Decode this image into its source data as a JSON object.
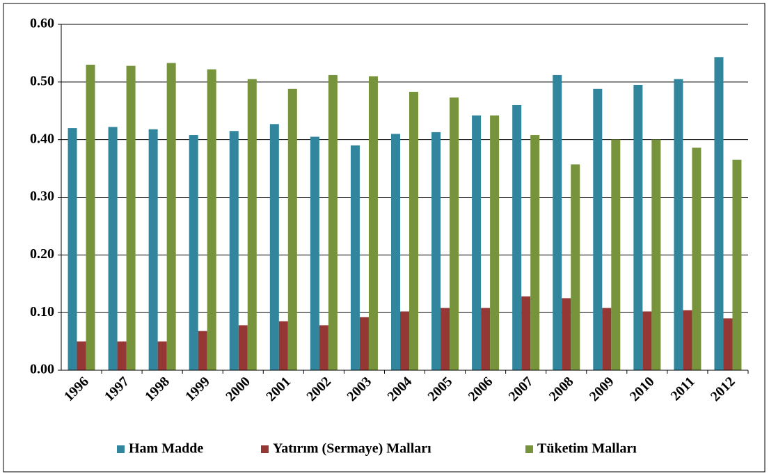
{
  "chart_data": {
    "type": "bar",
    "categories": [
      "1996",
      "1997",
      "1998",
      "1999",
      "2000",
      "2001",
      "2002",
      "2003",
      "2004",
      "2005",
      "2006",
      "2007",
      "2008",
      "2009",
      "2010",
      "2011",
      "2012"
    ],
    "series": [
      {
        "name": "Ham Madde",
        "color": "#31859c",
        "values": [
          0.42,
          0.422,
          0.418,
          0.408,
          0.415,
          0.427,
          0.405,
          0.39,
          0.41,
          0.413,
          0.442,
          0.46,
          0.512,
          0.488,
          0.495,
          0.505,
          0.543
        ]
      },
      {
        "name": "Yatırım (Sermaye) Malları",
        "color": "#953735",
        "values": [
          0.05,
          0.05,
          0.05,
          0.068,
          0.078,
          0.085,
          0.078,
          0.092,
          0.102,
          0.108,
          0.108,
          0.128,
          0.125,
          0.108,
          0.102,
          0.104,
          0.09
        ]
      },
      {
        "name": "Tüketim Malları",
        "color": "#77933c",
        "values": [
          0.53,
          0.528,
          0.533,
          0.522,
          0.505,
          0.488,
          0.512,
          0.51,
          0.483,
          0.473,
          0.442,
          0.408,
          0.357,
          0.4,
          0.4,
          0.386,
          0.365
        ]
      }
    ],
    "ylim": [
      0,
      0.6
    ],
    "yticks": [
      {
        "value": 0,
        "label": "0.00"
      },
      {
        "value": 0.1,
        "label": "0.10"
      },
      {
        "value": 0.2,
        "label": "0.20"
      },
      {
        "value": 0.3,
        "label": "0.30"
      },
      {
        "value": 0.4,
        "label": "0.40"
      },
      {
        "value": 0.5,
        "label": "0.50"
      },
      {
        "value": 0.6,
        "label": "0.60"
      }
    ],
    "grid": true,
    "legend": "bottom"
  }
}
